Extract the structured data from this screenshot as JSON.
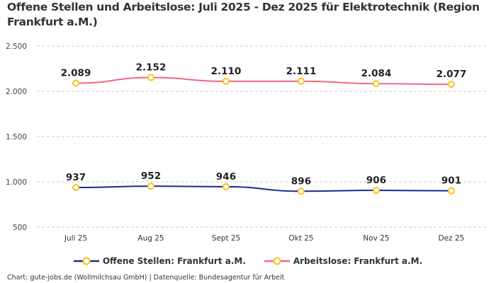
{
  "title": "Offene Stellen und Arbeitslose: Juli 2025 - Dez 2025 für Elektrotechnik (Region Frankfurt a.M.)",
  "footer": "Chart: gute-jobs.de (Wollmilchsau GmbH) | Datenquelle: Bundesagentur für Arbeit",
  "chart_data": {
    "type": "line",
    "title": "Offene Stellen und Arbeitslose: Juli 2025 - Dez 2025 für Elektrotechnik (Region Frankfurt a.M.)",
    "categories": [
      "Juli 25",
      "Aug 25",
      "Sept 25",
      "Okt 25",
      "Nov 25",
      "Dez 25"
    ],
    "ylim": [
      500,
      2500
    ],
    "yticks": [
      500,
      1000,
      1500,
      2000,
      2500
    ],
    "ytick_labels": [
      "500",
      "1.000",
      "1.500",
      "2.000",
      "2.500"
    ],
    "grid": true,
    "legend_position": "bottom",
    "series": [
      {
        "name": "Offene Stellen: Frankfurt a.M.",
        "color": "#1b2a8a",
        "values": [
          937,
          952,
          946,
          896,
          906,
          901
        ],
        "labels": [
          "937",
          "952",
          "946",
          "896",
          "906",
          "901"
        ]
      },
      {
        "name": "Arbeitslose: Frankfurt a.M.",
        "color": "#f2687f",
        "values": [
          2089,
          2152,
          2110,
          2111,
          2084,
          2077
        ],
        "labels": [
          "2.089",
          "2.152",
          "2.110",
          "2.111",
          "2.084",
          "2.077"
        ]
      }
    ],
    "marker_color": "#f5c518"
  }
}
